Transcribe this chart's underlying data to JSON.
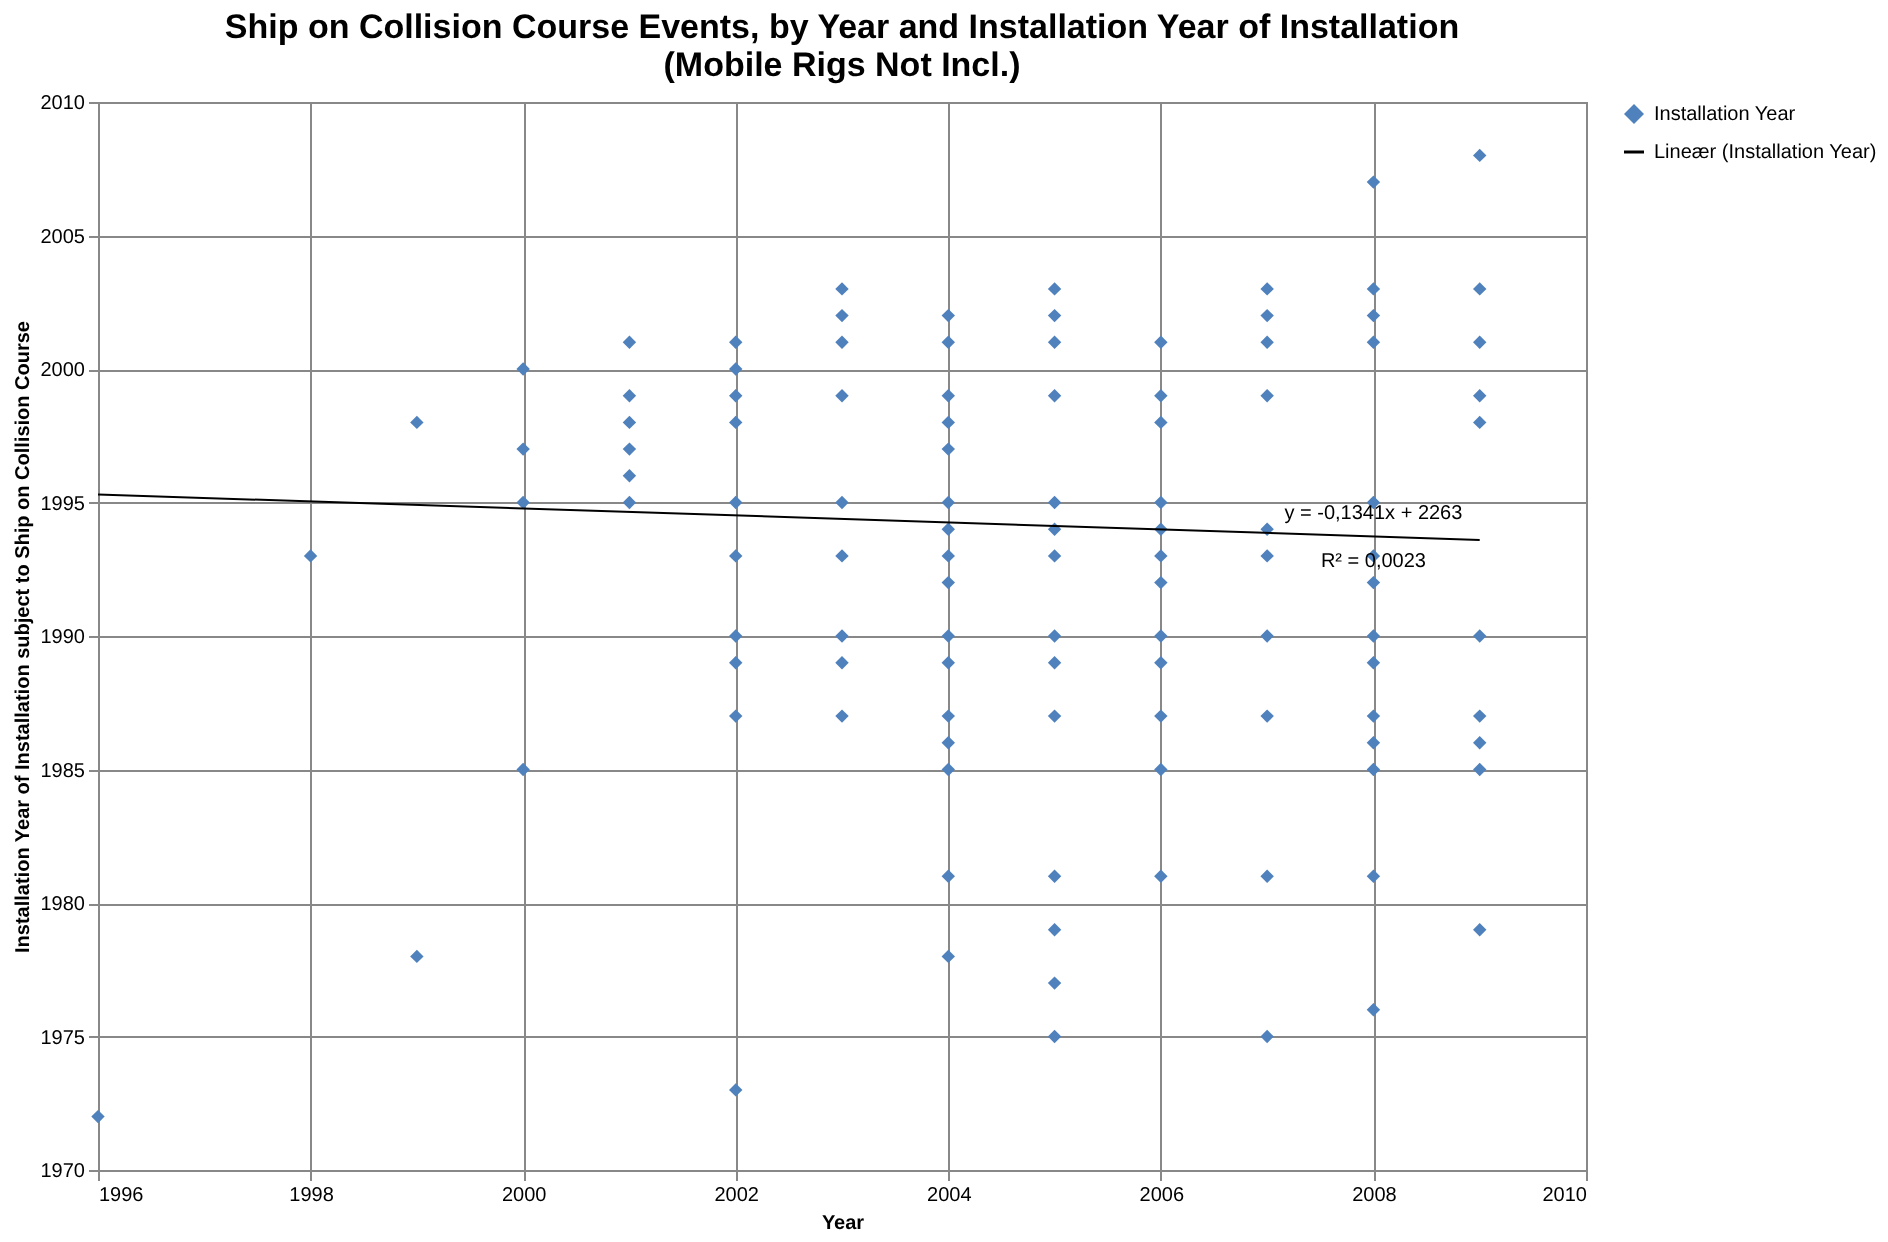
{
  "chart_data": {
    "type": "scatter",
    "title": "Ship on Collision Course Events, by Year and Installation Year of Installation\n(Mobile Rigs Not Incl.)",
    "xlabel": "Year",
    "ylabel": "Installation  Year of Installation  subject to Ship on Collision Course",
    "series": [
      {
        "name": "Installation Year",
        "color": "#4f81bd",
        "marker": "diamond",
        "x": [
          1996,
          1998,
          1999,
          1999,
          2000,
          2000,
          2000,
          2000,
          2001,
          2001,
          2001,
          2001,
          2001,
          2001,
          2002,
          2002,
          2002,
          2002,
          2002,
          2002,
          2002,
          2002,
          2002,
          2002,
          2003,
          2003,
          2003,
          2003,
          2003,
          2003,
          2003,
          2003,
          2003,
          2004,
          2004,
          2004,
          2004,
          2004,
          2004,
          2004,
          2004,
          2004,
          2004,
          2004,
          2004,
          2004,
          2004,
          2004,
          2004,
          2005,
          2005,
          2005,
          2005,
          2005,
          2005,
          2005,
          2005,
          2005,
          2005,
          2005,
          2005,
          2005,
          2005,
          2006,
          2006,
          2006,
          2006,
          2006,
          2006,
          2006,
          2006,
          2006,
          2006,
          2006,
          2006,
          2007,
          2007,
          2007,
          2007,
          2007,
          2007,
          2007,
          2007,
          2007,
          2007,
          2008,
          2008,
          2008,
          2008,
          2008,
          2008,
          2008,
          2008,
          2008,
          2008,
          2008,
          2008,
          2008,
          2008,
          2009,
          2009,
          2009,
          2009,
          2009,
          2009,
          2009,
          2009,
          2009,
          2009
        ],
        "values": [
          1972,
          1993,
          1998,
          1978,
          2000,
          1997,
          1995,
          1985,
          2001,
          1999,
          1998,
          1997,
          1996,
          1995,
          2001,
          2000,
          1999,
          1998,
          1995,
          1993,
          1990,
          1989,
          1987,
          1973,
          2003,
          2002,
          2001,
          1999,
          1995,
          1993,
          1990,
          1989,
          1987,
          2002,
          2001,
          1999,
          1998,
          1997,
          1995,
          1994,
          1993,
          1992,
          1990,
          1989,
          1987,
          1986,
          1985,
          1981,
          1978,
          2003,
          2002,
          2001,
          1999,
          1995,
          1994,
          1993,
          1990,
          1989,
          1987,
          1981,
          1979,
          1977,
          1975,
          2001,
          1999,
          1998,
          1995,
          1994,
          1993,
          1992,
          1990,
          1989,
          1987,
          1985,
          1981,
          2003,
          2002,
          2001,
          1999,
          1994,
          1993,
          1990,
          1987,
          1981,
          1975,
          2007,
          2003,
          2002,
          2001,
          1995,
          1993,
          1992,
          1990,
          1989,
          1987,
          1986,
          1985,
          1981,
          1976,
          2008,
          2003,
          2001,
          1999,
          1998,
          1990,
          1987,
          1986,
          1985,
          1979
        ]
      },
      {
        "name": "Lineær (Installation Year)",
        "type": "line",
        "color": "#000000",
        "line_style": "solid",
        "x": [
          1996,
          2009
        ],
        "values": [
          1995.3,
          1993.6
        ]
      }
    ],
    "annotations": [
      {
        "text": "y = -0,1341x + 2263",
        "x": 2008,
        "y": 1994.6
      },
      {
        "text": "R² = 0,0023",
        "x": 2008,
        "y": 1992.8
      }
    ],
    "xlim": [
      1996,
      2010
    ],
    "xticks": [
      1996,
      1998,
      2000,
      2002,
      2004,
      2006,
      2008,
      2010
    ],
    "ylim": [
      1970,
      2010
    ],
    "yticks": [
      1970,
      1975,
      1980,
      1985,
      1990,
      1995,
      2000,
      2005,
      2010
    ],
    "grid": true,
    "legend": "right"
  }
}
